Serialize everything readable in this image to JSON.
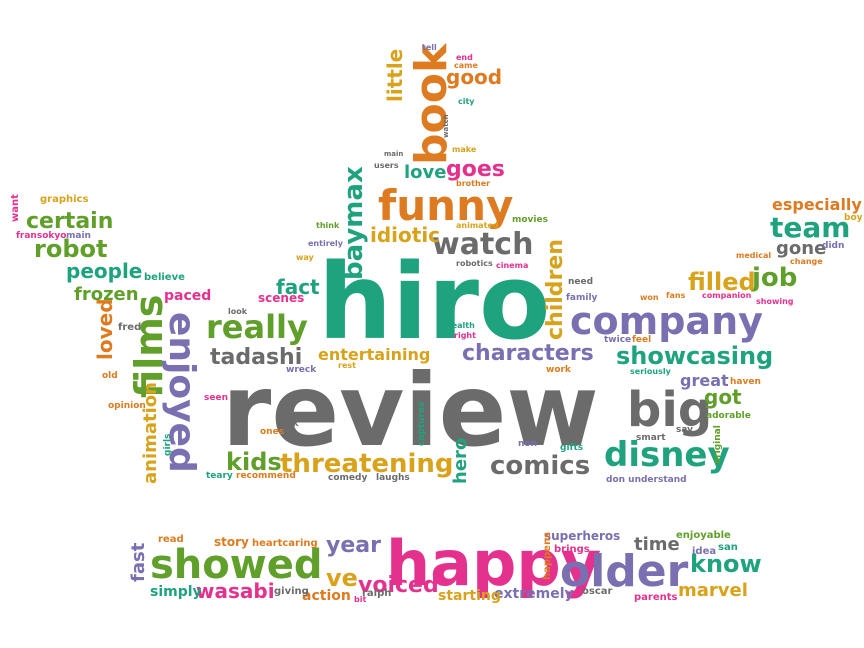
{
  "palette": {
    "green": "#1fa37e",
    "gray": "#6b6b6b",
    "orange": "#de7a1f",
    "purple": "#7a6fb0",
    "pink": "#e5318e",
    "olive": "#5f9f2a",
    "gold": "#d9a21b"
  },
  "words": [
    {
      "text": "hiro",
      "color": "green"
    },
    {
      "text": "review",
      "color": "gray"
    },
    {
      "text": "happy",
      "color": "pink"
    },
    {
      "text": "showed",
      "color": "olive"
    },
    {
      "text": "older",
      "color": "purple"
    },
    {
      "text": "company",
      "color": "purple"
    },
    {
      "text": "funny",
      "color": "orange"
    },
    {
      "text": "book",
      "color": "orange"
    },
    {
      "text": "films",
      "color": "olive"
    },
    {
      "text": "enjoyed",
      "color": "purple"
    },
    {
      "text": "really",
      "color": "olive"
    },
    {
      "text": "big",
      "color": "gray"
    },
    {
      "text": "watch",
      "color": "gray"
    },
    {
      "text": "disney",
      "color": "green"
    },
    {
      "text": "threatening",
      "color": "gold"
    },
    {
      "text": "baymax",
      "color": "green"
    },
    {
      "text": "children",
      "color": "gold"
    },
    {
      "text": "showcasing",
      "color": "green"
    },
    {
      "text": "characters",
      "color": "purple"
    },
    {
      "text": "comics",
      "color": "gray"
    },
    {
      "text": "kids",
      "color": "olive"
    },
    {
      "text": "tadashi",
      "color": "gray"
    },
    {
      "text": "robot",
      "color": "olive"
    },
    {
      "text": "certain",
      "color": "olive"
    },
    {
      "text": "people",
      "color": "green"
    },
    {
      "text": "team",
      "color": "green"
    },
    {
      "text": "job",
      "color": "olive"
    },
    {
      "text": "filled",
      "color": "gold"
    },
    {
      "text": "goes",
      "color": "pink"
    },
    {
      "text": "good",
      "color": "orange"
    },
    {
      "text": "little",
      "color": "gold"
    },
    {
      "text": "love",
      "color": "green"
    },
    {
      "text": "idiotic",
      "color": "gold"
    },
    {
      "text": "fact",
      "color": "green"
    },
    {
      "text": "scenes",
      "color": "pink"
    },
    {
      "text": "entertaining",
      "color": "gold"
    },
    {
      "text": "frozen",
      "color": "olive"
    },
    {
      "text": "paced",
      "color": "pink"
    },
    {
      "text": "loved",
      "color": "orange"
    },
    {
      "text": "animation",
      "color": "gold"
    },
    {
      "text": "hero",
      "color": "green"
    },
    {
      "text": "wasabi",
      "color": "pink"
    },
    {
      "text": "voiced",
      "color": "pink"
    },
    {
      "text": "year",
      "color": "purple"
    },
    {
      "text": "ve",
      "color": "gold"
    },
    {
      "text": "know",
      "color": "green"
    },
    {
      "text": "marvel",
      "color": "gold"
    },
    {
      "text": "time",
      "color": "gray"
    },
    {
      "text": "fast",
      "color": "purple"
    },
    {
      "text": "got",
      "color": "olive"
    },
    {
      "text": "great",
      "color": "purple"
    },
    {
      "text": "gone",
      "color": "gray"
    },
    {
      "text": "especially",
      "color": "orange"
    },
    {
      "text": "action",
      "color": "orange"
    },
    {
      "text": "simply",
      "color": "green"
    },
    {
      "text": "extremely",
      "color": "purple"
    },
    {
      "text": "starting",
      "color": "gold"
    },
    {
      "text": "story",
      "color": "orange"
    },
    {
      "text": "superheros",
      "color": "purple"
    },
    {
      "text": "enjoyable",
      "color": "olive"
    },
    {
      "text": "heartcaring",
      "color": "orange"
    },
    {
      "text": "read",
      "color": "orange"
    },
    {
      "text": "brings",
      "color": "pink"
    },
    {
      "text": "happens",
      "color": "orange"
    },
    {
      "text": "idea",
      "color": "purple"
    },
    {
      "text": "san",
      "color": "green"
    },
    {
      "text": "parents",
      "color": "pink"
    },
    {
      "text": "oscar",
      "color": "gray"
    },
    {
      "text": "ralph",
      "color": "gray"
    },
    {
      "text": "giving",
      "color": "gray"
    },
    {
      "text": "bit",
      "color": "pink"
    },
    {
      "text": "graphics",
      "color": "gold"
    },
    {
      "text": "want",
      "color": "pink"
    },
    {
      "text": "fransokyo",
      "color": "pink"
    },
    {
      "text": "main",
      "color": "purple"
    },
    {
      "text": "believe",
      "color": "green"
    },
    {
      "text": "fred",
      "color": "gray"
    },
    {
      "text": "old",
      "color": "orange"
    },
    {
      "text": "opinion",
      "color": "orange"
    },
    {
      "text": "girls",
      "color": "green"
    },
    {
      "text": "seen",
      "color": "pink"
    },
    {
      "text": "wreck",
      "color": "purple"
    },
    {
      "text": "ones",
      "color": "orange"
    },
    {
      "text": "took",
      "color": "gray"
    },
    {
      "text": "teary",
      "color": "green"
    },
    {
      "text": "recommend",
      "color": "orange"
    },
    {
      "text": "comedy",
      "color": "gray"
    },
    {
      "text": "laughs",
      "color": "gray"
    },
    {
      "text": "captures",
      "color": "green"
    },
    {
      "text": "non",
      "color": "purple"
    },
    {
      "text": "gifts",
      "color": "green"
    },
    {
      "text": "smart",
      "color": "gray"
    },
    {
      "text": "say",
      "color": "gray"
    },
    {
      "text": "adorable",
      "color": "olive"
    },
    {
      "text": "original",
      "color": "olive"
    },
    {
      "text": "don understand",
      "color": "purple"
    },
    {
      "text": "haven",
      "color": "orange"
    },
    {
      "text": "seriously",
      "color": "green"
    },
    {
      "text": "twice",
      "color": "purple"
    },
    {
      "text": "feel",
      "color": "orange"
    },
    {
      "text": "work",
      "color": "orange"
    },
    {
      "text": "family",
      "color": "purple"
    },
    {
      "text": "need",
      "color": "gray"
    },
    {
      "text": "won",
      "color": "orange"
    },
    {
      "text": "fans",
      "color": "orange"
    },
    {
      "text": "companion",
      "color": "pink"
    },
    {
      "text": "showing",
      "color": "pink"
    },
    {
      "text": "medical",
      "color": "orange"
    },
    {
      "text": "change",
      "color": "orange"
    },
    {
      "text": "boy",
      "color": "gold"
    },
    {
      "text": "didn",
      "color": "purple"
    },
    {
      "text": "cinema",
      "color": "pink"
    },
    {
      "text": "robotics",
      "color": "gray"
    },
    {
      "text": "movies",
      "color": "olive"
    },
    {
      "text": "animated",
      "color": "gold"
    },
    {
      "text": "think",
      "color": "olive"
    },
    {
      "text": "entirely",
      "color": "purple"
    },
    {
      "text": "way",
      "color": "gold"
    },
    {
      "text": "users",
      "color": "gray"
    },
    {
      "text": "brother",
      "color": "orange"
    },
    {
      "text": "make",
      "color": "gold"
    },
    {
      "text": "main",
      "color": "gray"
    },
    {
      "text": "tell",
      "color": "purple"
    },
    {
      "text": "end",
      "color": "pink"
    },
    {
      "text": "came",
      "color": "orange"
    },
    {
      "text": "city",
      "color": "green"
    },
    {
      "text": "health",
      "color": "green"
    },
    {
      "text": "right",
      "color": "pink"
    },
    {
      "text": "rest",
      "color": "gold"
    },
    {
      "text": "look",
      "color": "gray"
    },
    {
      "text": "watch",
      "color": "gray"
    }
  ]
}
